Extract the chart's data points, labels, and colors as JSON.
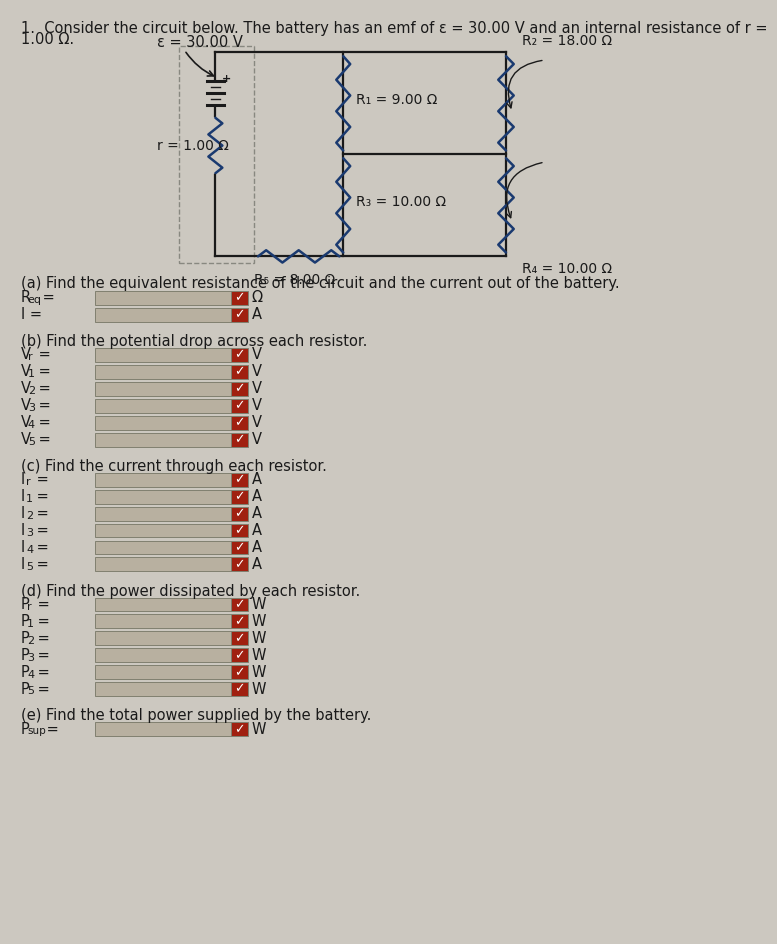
{
  "title_line1": "1.  Consider the circuit below. The battery has an emf of ε = 30.00 V and an internal resistance of r =",
  "title_line2": "1.00 Ω.",
  "bg_color": "#ccc8c0",
  "text_color": "#1a1a1a",
  "wire_color": "#1a1a1a",
  "res_color": "#1a3a70",
  "circuit": {
    "emf_label": "ε = 30.00 V",
    "r_label": "r = 1.00 Ω",
    "R1_label": "R₁ = 9.00 Ω",
    "R2_label": "R₂ = 18.00 Ω",
    "R3_label": "R₃ = 10.00 Ω",
    "R4_label": "R₄ = 10.00 Ω",
    "R5_label": "R₅ = 8.00 Ω"
  },
  "input_box_color": "#b8b0a0",
  "input_box_edge": "#808070",
  "check_box_color": "#a02010",
  "check_color": "#ffffff",
  "sections": {
    "a_label": "(a) Find the equivalent resistance of the circuit and the current out of the battery.",
    "b_label": "(b) Find the potential drop across each resistor.",
    "c_label": "(c) Find the current through each resistor.",
    "d_label": "(d) Find the power dissipated by each resistor.",
    "e_label": "(e) Find the total power supplied by the battery."
  }
}
